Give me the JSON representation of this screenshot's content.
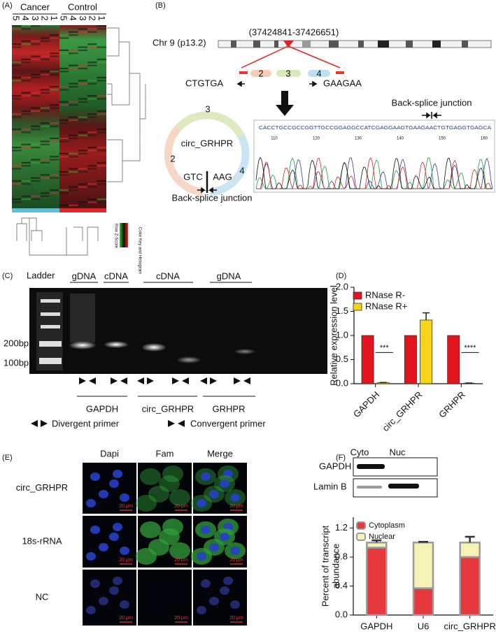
{
  "panel_labels": [
    "(A)",
    "(B)",
    "(C)",
    "(D)",
    "(E)",
    "(F)"
  ],
  "heatmap": {
    "groups": [
      "Cancer",
      "Control"
    ],
    "samples": [
      "5",
      "4",
      "3",
      "2",
      "1",
      "5",
      "4",
      "3",
      "2",
      "1"
    ],
    "color_key_title": "Color Key and Histogram",
    "color_key_axis": "Row Z-Score"
  },
  "genome": {
    "chromosome": "Chr 9 (p13.2)",
    "coordinates": "(37424841-37426651)",
    "left_seq": "CTGTGA",
    "right_seq": "GAAGAA",
    "exons": [
      "2",
      "3",
      "4"
    ],
    "circ_name": "circ_GRHPR",
    "circ_left": "GTC",
    "circ_right": "AAG",
    "junction_label_circle": "Back-splice junction",
    "junction_label_trace": "Back-splice junction",
    "sequence": "CACCTGCCGCCGGTTGCCGGAGGCCATCGAGGAAGTGAAGAACTGTGAGGTGAGCA",
    "seq_ticks": [
      "110",
      "120",
      "130",
      "140",
      "150",
      "160"
    ]
  },
  "gel": {
    "ladder": "Ladder",
    "lanes": [
      "gDNA",
      "cDNA",
      "cDNA",
      "gDNA"
    ],
    "markers": [
      "200bp",
      "100bp"
    ],
    "genes": [
      "GAPDH",
      "circ_GRHPR",
      "GRHPR"
    ],
    "legend": [
      "Divergent primer",
      "Convergent primer"
    ]
  },
  "microscopy": {
    "columns": [
      "Dapi",
      "Fam",
      "Merge"
    ],
    "rows": [
      "circ_GRHPR",
      "18s-rRNA",
      "NC"
    ],
    "scale_bar": "20 μm"
  },
  "blot": {
    "columns": [
      "Cyto",
      "Nuc"
    ],
    "rows": [
      "GAPDH",
      "Lamin B"
    ]
  },
  "chart_data": [
    {
      "type": "bar",
      "ylabel": "Relative expression level",
      "categories": [
        "GAPDH",
        "circ_GRHPR",
        "GRHPR"
      ],
      "series": [
        {
          "name": "RNase R-",
          "color": "#e3141e",
          "values": [
            1,
            1,
            1
          ]
        },
        {
          "name": "RNase R+",
          "color": "#f7d417",
          "values": [
            0.02,
            1.32,
            0.01
          ],
          "errors": [
            0.005,
            0.15,
            0.005
          ]
        }
      ],
      "significance": [
        "***",
        null,
        "****"
      ],
      "ylim": [
        0,
        2
      ],
      "yticks": [
        {
          "value": 0,
          "label": "0.0"
        },
        0.5,
        {
          "value": 1,
          "label": "1.0"
        },
        1.5,
        {
          "value": 2,
          "label": "2.0"
        }
      ]
    },
    {
      "type": "stacked_bar",
      "ylabel": [
        "Percent of transcript",
        "abundance"
      ],
      "categories": [
        "GAPDH",
        "U6",
        "circ_GRHPR"
      ],
      "series": [
        {
          "name": "Cytoplasm",
          "color": "#e8383d",
          "values": [
            0.93,
            0.37,
            0.8
          ],
          "errors": [
            0.02,
            0.01,
            0.08
          ]
        },
        {
          "name": "Nuclear",
          "color": "#f6f2b4",
          "values": [
            0.07,
            0.63,
            0.2
          ],
          "errors": [
            0.03,
            0.01,
            0.08
          ]
        }
      ],
      "ylim": [
        0,
        1.35
      ],
      "yticks": [
        {
          "value": 0,
          "label": "0.0"
        },
        0.4,
        0.8,
        1.2
      ]
    }
  ]
}
